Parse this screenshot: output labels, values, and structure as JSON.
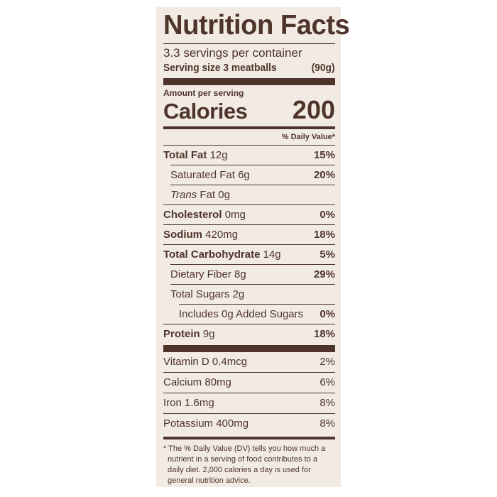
{
  "label": {
    "title": "Nutrition Facts",
    "servings_per_container": "3.3 servings per container",
    "serving_size_label": "Serving size 3 meatballs",
    "serving_size_value": "(90g)",
    "amount_per_serving": "Amount per serving",
    "calories_label": "Calories",
    "calories_value": "200",
    "daily_value_header": "% Daily Value*",
    "nutrients": [
      {
        "name": "Total Fat",
        "amount": "12g",
        "dv": "15%"
      },
      {
        "name": "Saturated Fat",
        "amount": "6g",
        "dv": "20%"
      },
      {
        "name": "Trans",
        "amount": "Fat 0g",
        "dv": ""
      },
      {
        "name": "Cholesterol",
        "amount": "0mg",
        "dv": "0%"
      },
      {
        "name": "Sodium",
        "amount": "420mg",
        "dv": "18%"
      },
      {
        "name": "Total Carbohydrate",
        "amount": "14g",
        "dv": "5%"
      },
      {
        "name": "Dietary Fiber",
        "amount": "8g",
        "dv": "29%"
      },
      {
        "name": "Total Sugars",
        "amount": "2g",
        "dv": ""
      },
      {
        "name": "Includes 0g Added Sugars",
        "amount": "",
        "dv": "0%"
      },
      {
        "name": "Protein",
        "amount": "9g",
        "dv": "18%"
      }
    ],
    "vitamins": [
      {
        "name": "Vitamin D",
        "amount": "0.4mcg",
        "dv": "2%"
      },
      {
        "name": "Calcium",
        "amount": "80mg",
        "dv": "6%"
      },
      {
        "name": "Iron",
        "amount": "1.6mg",
        "dv": "8%"
      },
      {
        "name": "Potassium",
        "amount": "400mg",
        "dv": "8%"
      }
    ],
    "footnote": "* The % Daily Value (DV) tells you how much a nutrient in a serving of food contributes to a daily diet. 2,000 calories a day is used for general nutrition advice."
  },
  "colors": {
    "ink": "#4e342b",
    "panel": "#f2ebe3"
  }
}
